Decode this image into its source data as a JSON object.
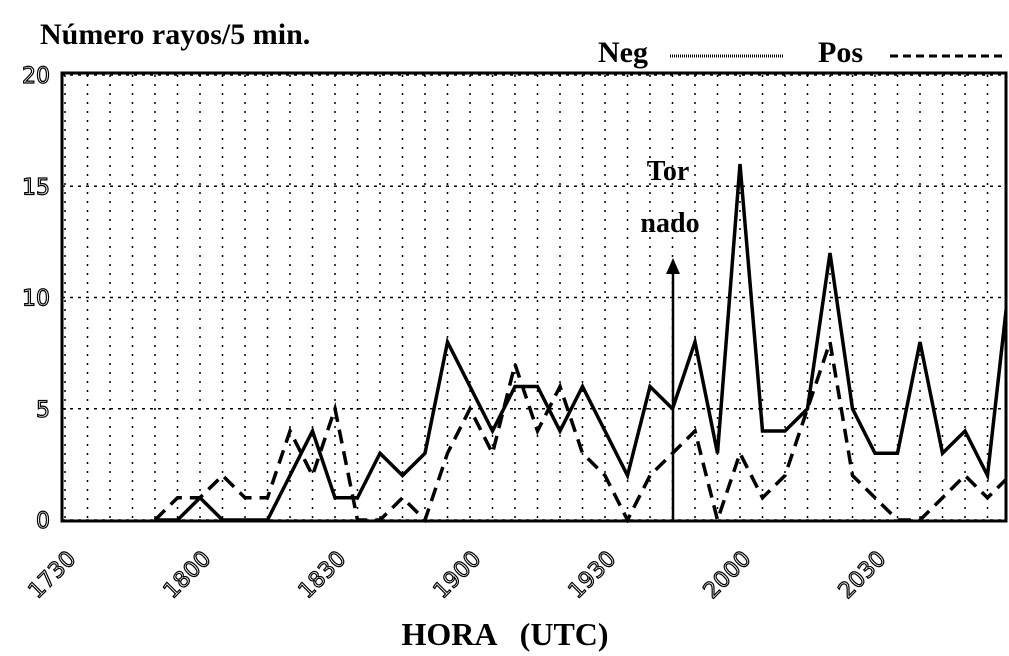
{
  "chart_data": {
    "type": "line",
    "title": "Número rayos/5 min.",
    "x_label": "HORA   (UTC)",
    "annotation": [
      "Tor",
      "nado"
    ],
    "categories": [
      "1730",
      null,
      null,
      null,
      null,
      null,
      "1800",
      null,
      null,
      null,
      null,
      null,
      "1830",
      null,
      null,
      null,
      null,
      null,
      "1900",
      null,
      null,
      null,
      null,
      null,
      "1930",
      null,
      null,
      null,
      null,
      null,
      "2000",
      null,
      null,
      null,
      null,
      null,
      "2030",
      null,
      null,
      null,
      null,
      null,
      null
    ],
    "series": [
      {
        "name": "Neg",
        "color": "#000000",
        "dash": "solid",
        "values": [
          null,
          null,
          null,
          null,
          0,
          0,
          1,
          0,
          0,
          0,
          2,
          4,
          1,
          1,
          3,
          2,
          3,
          8,
          6,
          4,
          6,
          6,
          4,
          6,
          4,
          2,
          6,
          5,
          8,
          3,
          16,
          4,
          4,
          5,
          12,
          5,
          3,
          3,
          8,
          3,
          4,
          2,
          11
        ]
      },
      {
        "name": "Pos",
        "color": "#000000",
        "dash": "dashed",
        "values": [
          null,
          null,
          null,
          null,
          0,
          1,
          1,
          2,
          1,
          1,
          4,
          2,
          5,
          0,
          0,
          1,
          0,
          3,
          5,
          3,
          7,
          4,
          6,
          3,
          2,
          0,
          2,
          3,
          4,
          0,
          3,
          1,
          2,
          5,
          8,
          2,
          1,
          0,
          0,
          1,
          2,
          1,
          2
        ]
      }
    ],
    "ylim": [
      0,
      20
    ],
    "yticks": [
      0,
      5,
      10,
      15,
      20
    ],
    "grid": true,
    "legend": "top-right"
  }
}
